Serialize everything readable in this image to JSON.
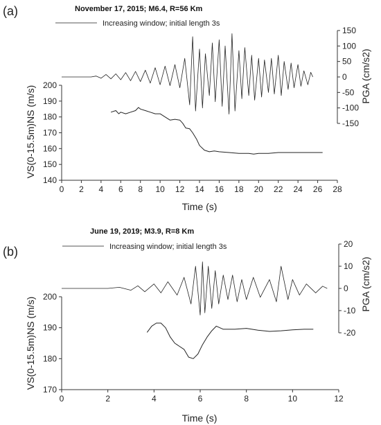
{
  "chart_data": [
    {
      "panel_label": "(a)",
      "type": "line",
      "title": "November 17, 2015; M6.4, R=56 Km",
      "legend": "Increasing window; initial length 3s",
      "legend_placement": "top",
      "grid": false,
      "xlabel": "Time (s)",
      "xlim": [
        0,
        28
      ],
      "xticks": [
        0,
        2,
        4,
        6,
        8,
        10,
        12,
        14,
        16,
        18,
        20,
        22,
        24,
        26,
        28
      ],
      "ylabel_left": "VS(0-15.5m)NS (m/s)",
      "ylim_left": [
        140,
        200
      ],
      "yticks_left": [
        140,
        150,
        160,
        170,
        180,
        190,
        200
      ],
      "ylabel_right": "PGA (cm/s2)",
      "ylim_right": [
        -150,
        150
      ],
      "yticks_right": [
        -150,
        -100,
        -50,
        0,
        50,
        100,
        150
      ],
      "series": [
        {
          "axis": "left",
          "x": [
            5.0,
            5.5,
            5.8,
            6.0,
            6.5,
            7.0,
            7.5,
            7.8,
            8.0,
            8.5,
            9.0,
            9.5,
            10.0,
            10.5,
            11.0,
            11.5,
            12.0,
            12.3,
            12.6,
            13.0,
            13.3,
            13.7,
            14.0,
            14.5,
            15.0,
            15.5,
            16.0,
            17.0,
            18.0,
            19.0,
            19.5,
            20.0,
            21.0,
            22.0,
            23.0,
            24.0,
            25.0,
            26.5
          ],
          "y": [
            183,
            184,
            182,
            183,
            182,
            183,
            184,
            186,
            185,
            184,
            183,
            182,
            182,
            180,
            178,
            178.5,
            178,
            176,
            173,
            172.5,
            170,
            166,
            162,
            159,
            158,
            158.5,
            158,
            157.5,
            157,
            157,
            156.5,
            157,
            157,
            157.5,
            157.5,
            157.5,
            157.5,
            157.5
          ]
        },
        {
          "axis": "right",
          "x": [
            0,
            3.0,
            3.5,
            4.0,
            4.5,
            5.0,
            5.5,
            6.0,
            6.5,
            7.0,
            7.5,
            8.0,
            8.5,
            9.0,
            9.5,
            10.0,
            10.5,
            11.0,
            11.5,
            12.0,
            12.5,
            13.0,
            13.3,
            13.6,
            14.0,
            14.3,
            14.6,
            15.0,
            15.3,
            15.6,
            16.0,
            16.3,
            16.6,
            17.0,
            17.3,
            17.6,
            18.0,
            18.3,
            18.6,
            19.0,
            19.3,
            19.6,
            20.0,
            20.3,
            20.6,
            21.0,
            21.3,
            21.6,
            22.0,
            22.3,
            22.6,
            23.0,
            23.3,
            23.6,
            24.0,
            24.3,
            24.6,
            25.0,
            25.3,
            25.5
          ],
          "y": [
            0,
            0,
            3,
            -4,
            8,
            -6,
            10,
            -9,
            14,
            -12,
            18,
            -15,
            22,
            -20,
            30,
            -25,
            35,
            -28,
            40,
            -35,
            60,
            -90,
            130,
            -110,
            90,
            -100,
            75,
            -60,
            110,
            -80,
            120,
            -95,
            100,
            -120,
            140,
            -110,
            85,
            -70,
            95,
            -60,
            70,
            -75,
            60,
            -65,
            55,
            -50,
            60,
            -55,
            70,
            -60,
            50,
            -40,
            45,
            -35,
            40,
            -30,
            20,
            -25,
            15,
            0
          ]
        }
      ]
    },
    {
      "panel_label": "(b)",
      "type": "line",
      "title": "June 19, 2019; M3.9, R=8 Km",
      "legend": "Increasing window; initial length 3s",
      "legend_placement": "top",
      "grid": false,
      "xlabel": "Time (s)",
      "xlim": [
        0,
        12
      ],
      "xticks": [
        0,
        2,
        4,
        6,
        8,
        10,
        12
      ],
      "ylabel_left": "VS(0-15.5m)NS (m/s)",
      "ylim_left": [
        170,
        200
      ],
      "yticks_left": [
        170,
        180,
        190,
        200
      ],
      "ylabel_right": "PGA (cm/s2)",
      "ylim_right": [
        -20,
        20
      ],
      "yticks_right": [
        -20,
        -10,
        0,
        10,
        20
      ],
      "series": [
        {
          "axis": "left",
          "x": [
            3.7,
            3.9,
            4.1,
            4.3,
            4.5,
            4.7,
            4.9,
            5.1,
            5.3,
            5.5,
            5.7,
            5.9,
            6.1,
            6.3,
            6.5,
            6.7,
            7.0,
            7.5,
            8.0,
            8.5,
            9.0,
            9.5,
            10.0,
            10.5,
            10.9
          ],
          "y": [
            188.5,
            190.5,
            191.5,
            191.5,
            190,
            187,
            185,
            184,
            183,
            180.5,
            180,
            181.5,
            184.5,
            187,
            189,
            190.5,
            189.5,
            189.5,
            189.8,
            189.2,
            188.8,
            189,
            189.3,
            189.5,
            189.5
          ]
        },
        {
          "axis": "right",
          "x": [
            0,
            2.0,
            2.5,
            3.0,
            3.3,
            3.6,
            4.0,
            4.3,
            4.6,
            5.0,
            5.3,
            5.6,
            5.8,
            6.0,
            6.1,
            6.2,
            6.35,
            6.5,
            6.65,
            6.8,
            7.0,
            7.2,
            7.4,
            7.6,
            7.8,
            8.0,
            8.3,
            8.6,
            9.0,
            9.3,
            9.5,
            9.8,
            10.0,
            10.3,
            10.6,
            11.0,
            11.3,
            11.5
          ],
          "y": [
            0,
            0,
            0.5,
            -0.8,
            1.2,
            -1.5,
            2,
            -2,
            3,
            -3,
            5,
            -7,
            10,
            -12,
            12,
            -11,
            10,
            -9,
            8,
            -7,
            6,
            -5,
            6,
            -6,
            4,
            -5,
            5,
            -4,
            4,
            -6,
            10,
            -5,
            4,
            -3,
            2,
            -2,
            1,
            0
          ]
        }
      ]
    }
  ]
}
